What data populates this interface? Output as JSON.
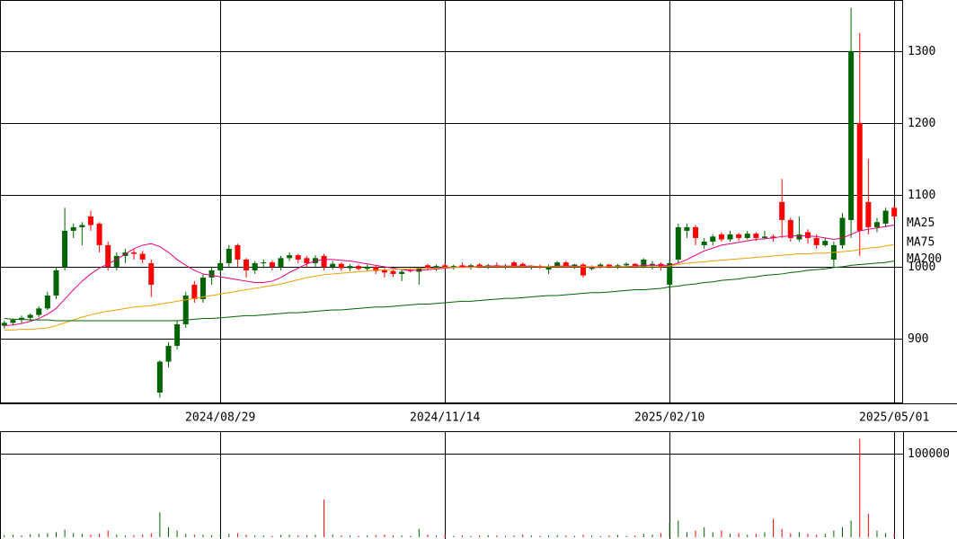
{
  "chart_data": [
    {
      "type": "candlestick",
      "categories": [
        null,
        null,
        null,
        null,
        null,
        null,
        null,
        null,
        null,
        null,
        null,
        null,
        null,
        null,
        null,
        null,
        null,
        null,
        null,
        null,
        null,
        null,
        null,
        null,
        null,
        "2024/08/29",
        null,
        null,
        null,
        null,
        null,
        null,
        null,
        null,
        null,
        null,
        null,
        null,
        null,
        null,
        null,
        null,
        null,
        null,
        null,
        null,
        null,
        null,
        null,
        null,
        null,
        "2024/11/14",
        null,
        null,
        null,
        null,
        null,
        null,
        null,
        null,
        null,
        null,
        null,
        null,
        null,
        null,
        null,
        null,
        null,
        null,
        null,
        null,
        null,
        null,
        null,
        null,
        null,
        "2025/02/10",
        null,
        null,
        null,
        null,
        null,
        null,
        null,
        null,
        null,
        null,
        null,
        null,
        null,
        null,
        null,
        null,
        null,
        null,
        null,
        null,
        null,
        null,
        null,
        null,
        null,
        "2025/05/01"
      ],
      "open": [
        918,
        922,
        926,
        929,
        933,
        942,
        960,
        1000,
        1050,
        1055,
        1070,
        1060,
        1030,
        1000,
        1015,
        1020,
        1018,
        1005,
        825,
        868,
        890,
        920,
        975,
        955,
        985,
        995,
        1005,
        1030,
        1010,
        995,
        1005,
        1006,
        1000,
        1012,
        1016,
        1012,
        1005,
        1015,
        1000,
        1004,
        998,
        1001,
        997,
        1000,
        995,
        994,
        990,
        995,
        993,
        1002,
        998,
        1002,
        999,
        1002,
        1000,
        1003,
        1000,
        1002,
        1000,
        1006,
        1004,
        1000,
        1001,
        996,
        1000,
        1006,
        1000,
        1003,
        997,
        1000,
        1003,
        1000,
        1002,
        1004,
        1000,
        1002,
        1004,
        975,
        1010,
        1050,
        1055,
        1030,
        1035,
        1045,
        1038,
        1045,
        1040,
        1046,
        1040,
        1042,
        1090,
        1065,
        1038,
        1048,
        1040,
        1030,
        1010,
        1030,
        1065,
        1200,
        1090,
        1055,
        1060,
        1082
      ],
      "high": [
        925,
        928,
        932,
        935,
        945,
        965,
        1000,
        1082,
        1060,
        1062,
        1078,
        1062,
        1035,
        1020,
        1025,
        1024,
        1022,
        1010,
        870,
        895,
        925,
        965,
        980,
        990,
        1000,
        1010,
        1030,
        1032,
        1012,
        1008,
        1010,
        1009,
        1015,
        1020,
        1018,
        1015,
        1016,
        1018,
        1008,
        1006,
        1004,
        1003,
        1003,
        1002,
        998,
        996,
        995,
        998,
        1000,
        1004,
        1003,
        1005,
        1003,
        1006,
        1004,
        1005,
        1004,
        1006,
        1004,
        1008,
        1006,
        1002,
        1003,
        1003,
        1008,
        1008,
        1004,
        1005,
        1002,
        1005,
        1004,
        1004,
        1006,
        1005,
        1012,
        1008,
        1006,
        1010,
        1060,
        1060,
        1058,
        1040,
        1045,
        1048,
        1050,
        1047,
        1050,
        1048,
        1050,
        1045,
        1122,
        1068,
        1070,
        1052,
        1045,
        1040,
        1035,
        1075,
        1360,
        1325,
        1150,
        1068,
        1082,
        1085
      ],
      "low": [
        914,
        918,
        922,
        925,
        930,
        940,
        955,
        995,
        1040,
        1030,
        1050,
        1020,
        995,
        995,
        1005,
        1010,
        1005,
        958,
        818,
        860,
        885,
        915,
        950,
        950,
        975,
        990,
        1000,
        1000,
        985,
        990,
        998,
        995,
        995,
        1008,
        1005,
        1000,
        1000,
        995,
        996,
        995,
        994,
        995,
        994,
        990,
        985,
        986,
        980,
        992,
        975,
        995,
        994,
        997,
        996,
        998,
        996,
        998,
        997,
        998,
        997,
        998,
        998,
        996,
        997,
        990,
        998,
        998,
        997,
        985,
        995,
        998,
        998,
        997,
        1000,
        998,
        998,
        996,
        995,
        962,
        1005,
        1040,
        1030,
        1025,
        1030,
        1035,
        1035,
        1036,
        1038,
        1036,
        1038,
        1035,
        1040,
        1035,
        1035,
        1032,
        1025,
        1028,
        1000,
        1025,
        1040,
        1015,
        1045,
        1048,
        1055,
        1065
      ],
      "close": [
        922,
        926,
        929,
        933,
        942,
        960,
        995,
        1050,
        1055,
        1058,
        1058,
        1030,
        1000,
        1015,
        1020,
        1018,
        1010,
        975,
        868,
        890,
        920,
        960,
        955,
        985,
        995,
        1005,
        1025,
        1010,
        995,
        1005,
        1006,
        1000,
        1012,
        1016,
        1010,
        1005,
        1012,
        1000,
        1004,
        998,
        1001,
        997,
        1000,
        994,
        992,
        990,
        993,
        994,
        998,
        998,
        1001,
        999,
        1001,
        1000,
        1002,
        1000,
        1002,
        1000,
        1001,
        1000,
        1001,
        1001,
        999,
        1000,
        1006,
        1000,
        1003,
        988,
        1000,
        1003,
        1000,
        1002,
        1004,
        1000,
        1010,
        1004,
        1000,
        1005,
        1055,
        1055,
        1040,
        1035,
        1042,
        1038,
        1045,
        1040,
        1046,
        1040,
        1042,
        1040,
        1065,
        1040,
        1045,
        1040,
        1030,
        1036,
        1030,
        1068,
        1300,
        1050,
        1055,
        1062,
        1078,
        1070
      ],
      "up_color": "#006400",
      "down_color": "#ff0000",
      "ylim": [
        810,
        1371
      ],
      "yticks": [
        900,
        1000,
        1100,
        1200,
        1300
      ],
      "grid": true,
      "series": [
        {
          "name": "MA25",
          "color": "#e4007f",
          "values": [
            918,
            919,
            921,
            924,
            928,
            934,
            942,
            955,
            968,
            980,
            990,
            998,
            1004,
            1010,
            1018,
            1025,
            1030,
            1032,
            1028,
            1020,
            1010,
            1002,
            995,
            990,
            988,
            986,
            984,
            982,
            980,
            978,
            978,
            980,
            985,
            992,
            998,
            1004,
            1008,
            1010,
            1010,
            1009,
            1008,
            1006,
            1004,
            1002,
            1000,
            998,
            996,
            995,
            995,
            996,
            997,
            998,
            999,
            1000,
            1000,
            1000,
            1001,
            1001,
            1001,
            1001,
            1001,
            1001,
            1000,
            1000,
            1001,
            1001,
            1001,
            1000,
            999,
            999,
            1000,
            1000,
            1000,
            1001,
            1002,
            1002,
            1002,
            1002,
            1005,
            1010,
            1016,
            1022,
            1026,
            1030,
            1032,
            1034,
            1036,
            1038,
            1039,
            1040,
            1042,
            1043,
            1043,
            1043,
            1042,
            1040,
            1038,
            1040,
            1045,
            1050,
            1052,
            1054,
            1056,
            1058
          ]
        },
        {
          "name": "MA75",
          "color": "#f0a000",
          "values": [
            912,
            912,
            913,
            913,
            914,
            915,
            918,
            922,
            926,
            930,
            933,
            936,
            938,
            940,
            942,
            944,
            945,
            946,
            948,
            950,
            952,
            954,
            956,
            958,
            960,
            962,
            964,
            966,
            968,
            970,
            972,
            974,
            976,
            979,
            982,
            985,
            987,
            989,
            990,
            991,
            992,
            993,
            994,
            995,
            996,
            996,
            997,
            997,
            998,
            998,
            998,
            999,
            999,
            999,
            999,
            1000,
            1000,
            1000,
            1000,
            1000,
            1000,
            1000,
            1000,
            1000,
            1000,
            1000,
            1000,
            1000,
            1000,
            1000,
            1000,
            1000,
            1000,
            1000,
            1000,
            1000,
            1000,
            1001,
            1003,
            1005,
            1006,
            1007,
            1008,
            1009,
            1010,
            1011,
            1012,
            1013,
            1014,
            1015,
            1016,
            1017,
            1018,
            1018,
            1019,
            1019,
            1020,
            1021,
            1022,
            1024,
            1026,
            1027,
            1029,
            1031
          ]
        },
        {
          "name": "MA200",
          "color": "#006400",
          "values": [
            928,
            927,
            927,
            926,
            926,
            926,
            925,
            925,
            925,
            925,
            925,
            925,
            925,
            925,
            925,
            925,
            925,
            925,
            925,
            925,
            925,
            926,
            927,
            928,
            928,
            929,
            930,
            931,
            932,
            932,
            933,
            934,
            935,
            936,
            936,
            937,
            938,
            939,
            940,
            940,
            941,
            942,
            943,
            944,
            944,
            945,
            946,
            947,
            948,
            948,
            949,
            950,
            951,
            952,
            952,
            953,
            954,
            955,
            956,
            956,
            957,
            958,
            959,
            960,
            960,
            961,
            962,
            963,
            964,
            964,
            965,
            966,
            967,
            968,
            968,
            969,
            970,
            972,
            973,
            975,
            976,
            978,
            979,
            981,
            982,
            983,
            985,
            986,
            988,
            989,
            990,
            992,
            993,
            995,
            996,
            997,
            999,
            1000,
            1002,
            1003,
            1004,
            1005,
            1006,
            1008
          ]
        }
      ]
    },
    {
      "type": "bar",
      "values": [
        2500,
        3000,
        2000,
        3500,
        4000,
        5000,
        6000,
        9000,
        5000,
        4000,
        3000,
        4000,
        8000,
        3000,
        2000,
        2500,
        3000,
        5000,
        30000,
        12000,
        8000,
        4000,
        3000,
        3000,
        2500,
        3000,
        4000,
        5000,
        3000,
        2000,
        2000,
        1500,
        2500,
        3000,
        2000,
        2500,
        3000,
        45000,
        3000,
        2000,
        2000,
        1500,
        2000,
        2500,
        3000,
        2000,
        2000,
        1500,
        10000,
        3000,
        2000,
        2500,
        1500,
        2000,
        1500,
        2000,
        2500,
        2000,
        1500,
        2000,
        3000,
        2000,
        1500,
        2000,
        2500,
        2000,
        1500,
        3000,
        2000,
        1500,
        2000,
        2500,
        1500,
        2000,
        4000,
        3000,
        5000,
        18000,
        20000,
        6000,
        8000,
        12000,
        6000,
        8000,
        4000,
        5000,
        3000,
        4000,
        6000,
        22000,
        10000,
        5000,
        6000,
        4000,
        3000,
        4000,
        8000,
        12000,
        20000,
        118000,
        28000,
        8000,
        5000,
        4000
      ],
      "ylim": [
        0,
        127000
      ],
      "yticks": [
        100000
      ],
      "grid": true
    }
  ]
}
